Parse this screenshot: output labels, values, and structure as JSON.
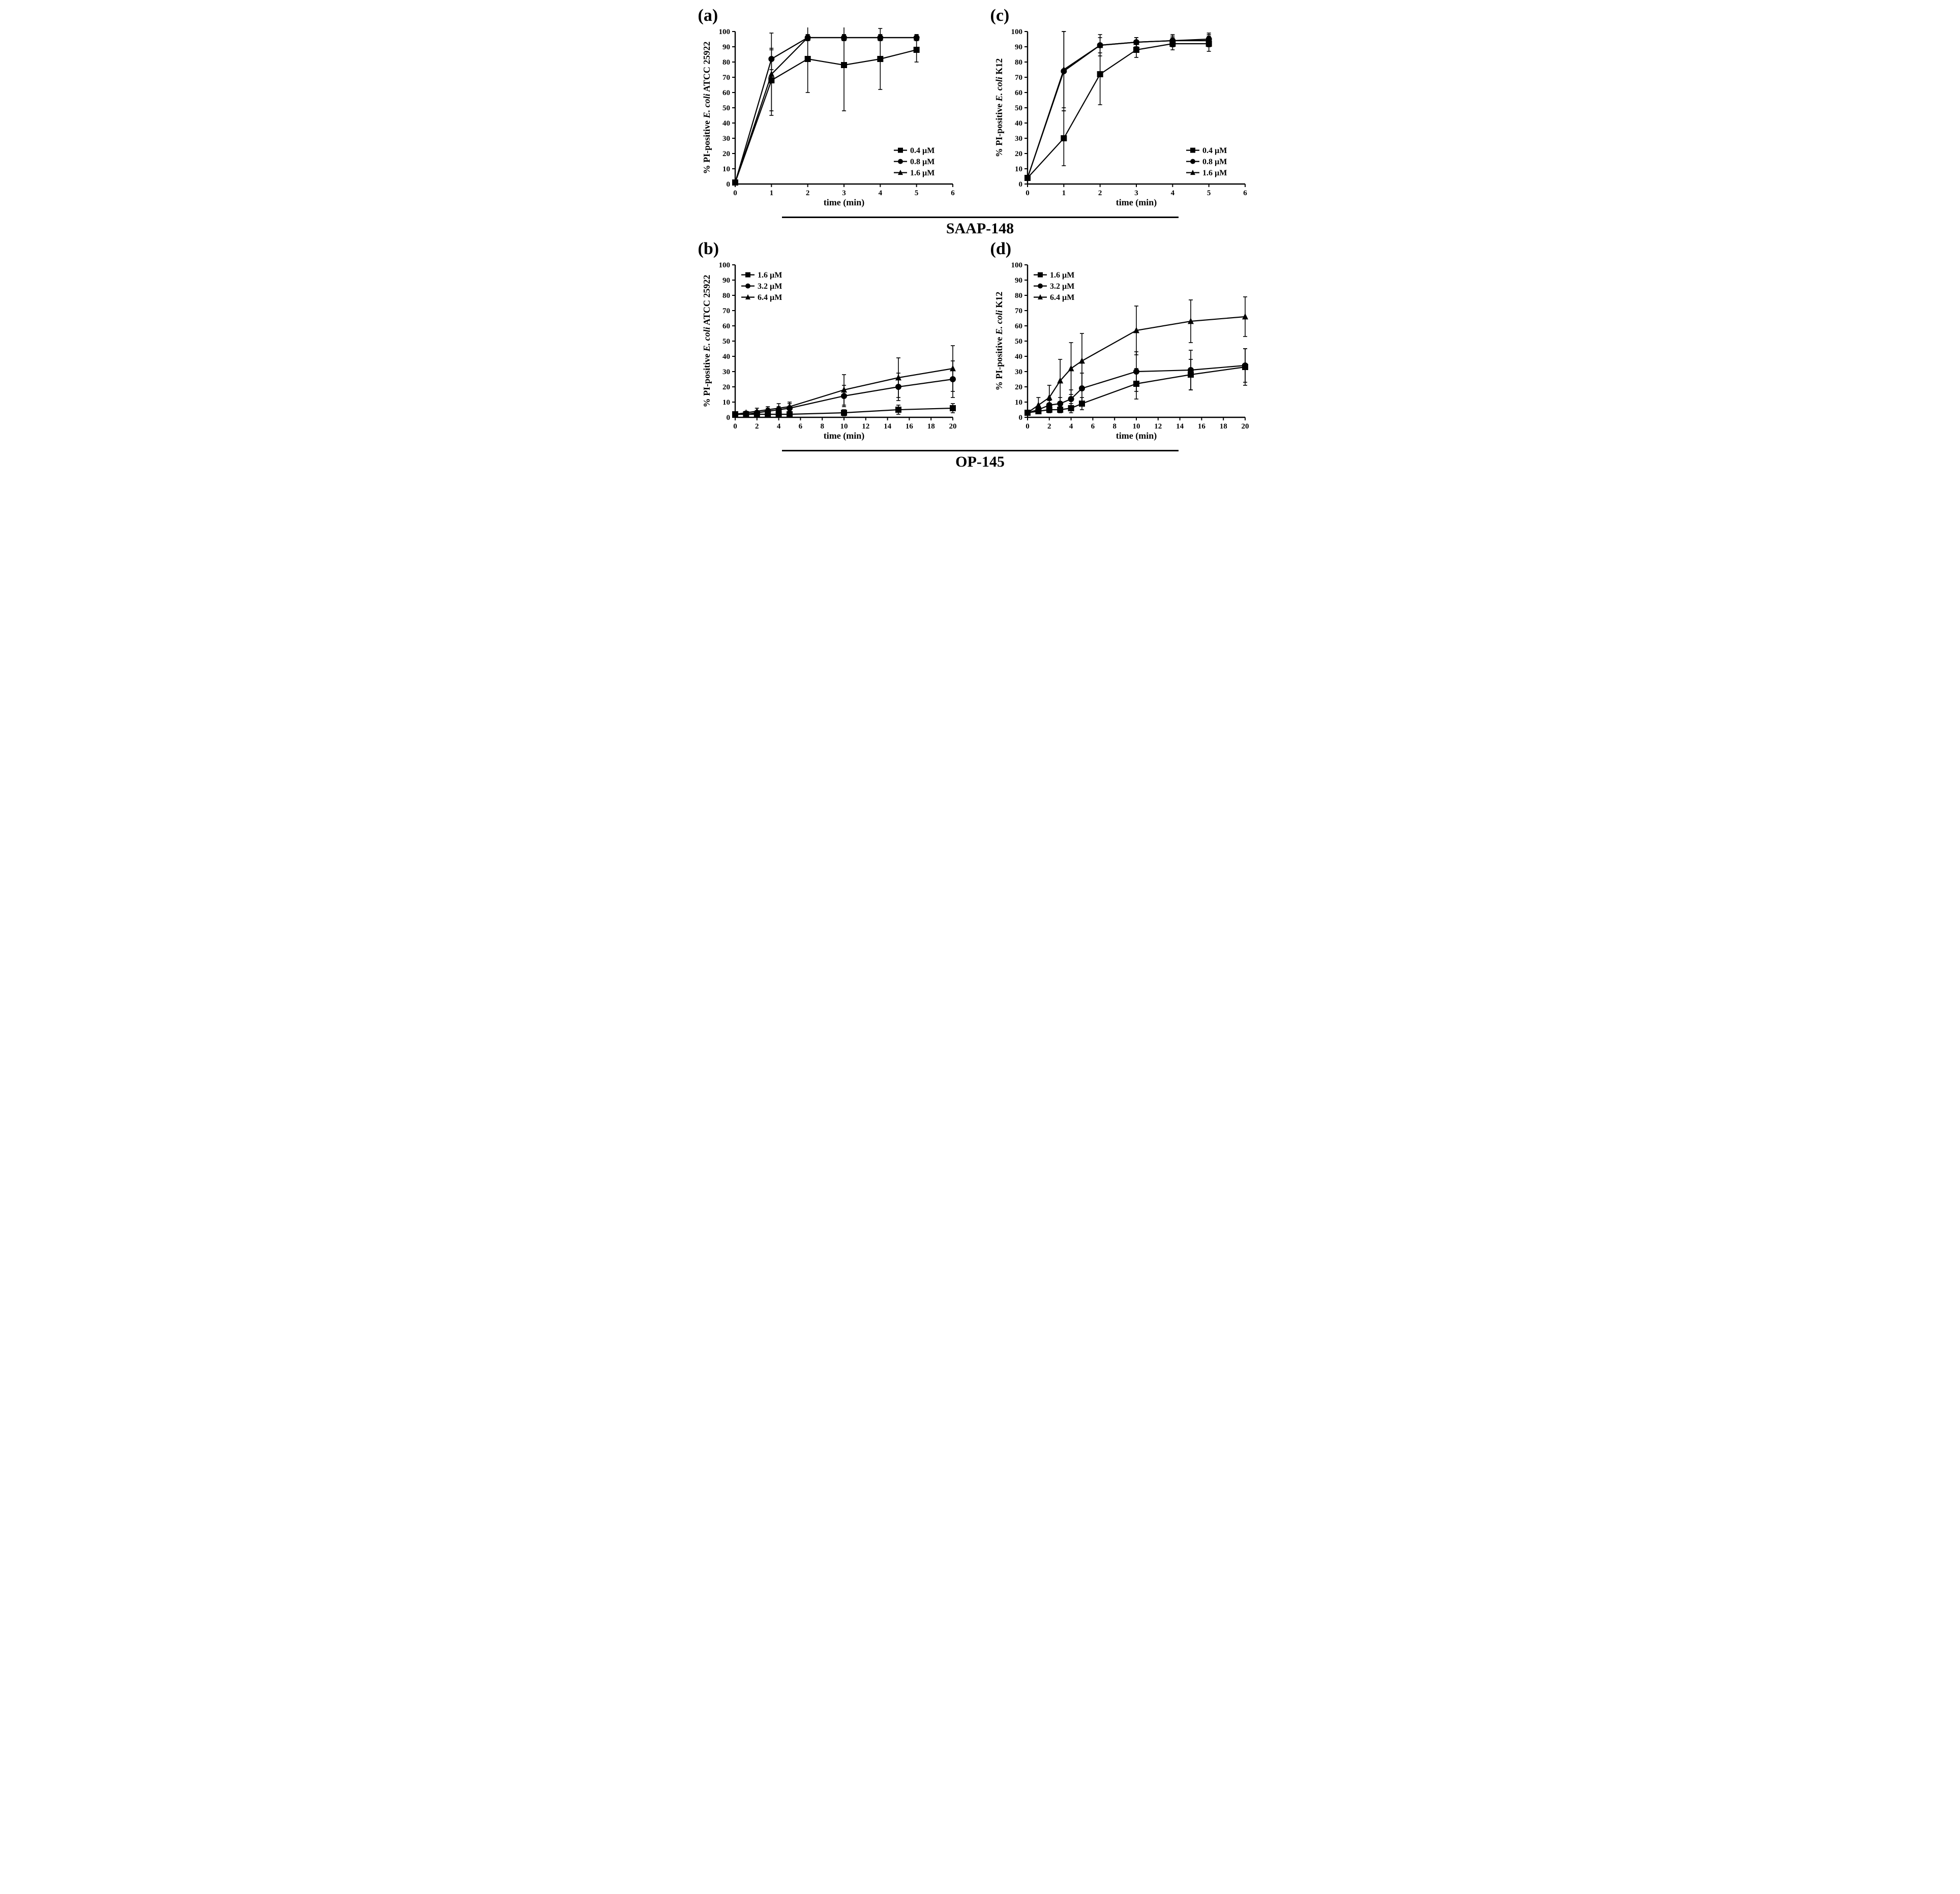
{
  "font_family": "Times New Roman, Times, serif",
  "colors": {
    "ink": "#000000",
    "bg": "#ffffff"
  },
  "sections": {
    "top": "SAAP-148",
    "bottom": "OP-145"
  },
  "panel_a": {
    "label": "(a)",
    "type": "line",
    "xlabel": "time (min)",
    "ylabel": "% PI-positive E. coli ATCC 25922",
    "ylabel_italic_ranges": [
      [
        14,
        21
      ]
    ],
    "xlim": [
      0,
      6
    ],
    "ylim": [
      0,
      100
    ],
    "xticks": [
      0,
      1,
      2,
      3,
      4,
      5,
      6
    ],
    "yticks": [
      0,
      10,
      20,
      30,
      40,
      50,
      60,
      70,
      80,
      90,
      100
    ],
    "axis_fontsize": 16,
    "tick_fontsize": 15,
    "label_fontsize": 18,
    "legend_fontsize": 16,
    "legend_pos": "br",
    "line_width": 2.2,
    "marker_size": 6,
    "series": [
      {
        "name": "0.4 µM",
        "marker": "square",
        "x": [
          0,
          1,
          2,
          3,
          4,
          5
        ],
        "y": [
          1,
          68,
          82,
          78,
          82,
          88
        ],
        "err": [
          0,
          20,
          22,
          30,
          20,
          8
        ]
      },
      {
        "name": "0.8 µM",
        "marker": "circle",
        "x": [
          0,
          1,
          2,
          3,
          4,
          5
        ],
        "y": [
          1,
          82,
          96,
          96,
          96,
          96
        ],
        "err": [
          0,
          7,
          2,
          2,
          2,
          2
        ]
      },
      {
        "name": "1.6 µM",
        "marker": "triangle",
        "x": [
          0,
          1,
          2,
          3,
          4,
          5
        ],
        "y": [
          1,
          72,
          96,
          96,
          96,
          96
        ],
        "err": [
          0,
          27,
          2,
          2,
          2,
          2
        ]
      }
    ]
  },
  "panel_c": {
    "label": "(c)",
    "type": "line",
    "xlabel": "time (min)",
    "ylabel": "% PI-positive E. coli K12",
    "ylabel_italic_ranges": [
      [
        14,
        21
      ]
    ],
    "xlim": [
      0,
      6
    ],
    "ylim": [
      0,
      100
    ],
    "xticks": [
      0,
      1,
      2,
      3,
      4,
      5,
      6
    ],
    "yticks": [
      0,
      10,
      20,
      30,
      40,
      50,
      60,
      70,
      80,
      90,
      100
    ],
    "axis_fontsize": 16,
    "tick_fontsize": 15,
    "label_fontsize": 18,
    "legend_fontsize": 16,
    "legend_pos": "br",
    "line_width": 2.2,
    "marker_size": 6,
    "series": [
      {
        "name": "0.4 µM",
        "marker": "square",
        "x": [
          0,
          1,
          2,
          3,
          4,
          5
        ],
        "y": [
          4,
          30,
          72,
          88,
          92,
          92
        ],
        "err": [
          0,
          18,
          20,
          5,
          4,
          5
        ]
      },
      {
        "name": "0.8 µM",
        "marker": "circle",
        "x": [
          0,
          1,
          2,
          3,
          4,
          5
        ],
        "y": [
          4,
          74,
          91,
          93,
          94,
          95
        ],
        "err": [
          0,
          26,
          7,
          3,
          4,
          4
        ]
      },
      {
        "name": "1.6 µM",
        "marker": "triangle",
        "x": [
          0,
          1,
          2,
          3,
          4,
          5
        ],
        "y": [
          4,
          75,
          91,
          93,
          94,
          94
        ],
        "err": [
          0,
          25,
          5,
          3,
          3,
          4
        ]
      }
    ]
  },
  "panel_b": {
    "label": "(b)",
    "type": "line",
    "xlabel": "time (min)",
    "ylabel": "% PI-positive E. coli ATCC 25922",
    "ylabel_italic_ranges": [
      [
        14,
        21
      ]
    ],
    "xlim": [
      0,
      20
    ],
    "ylim": [
      0,
      100
    ],
    "xticks": [
      0,
      2,
      4,
      6,
      8,
      10,
      12,
      14,
      16,
      18,
      20
    ],
    "yticks": [
      0,
      10,
      20,
      30,
      40,
      50,
      60,
      70,
      80,
      90,
      100
    ],
    "axis_fontsize": 16,
    "tick_fontsize": 15,
    "label_fontsize": 18,
    "legend_fontsize": 16,
    "legend_pos": "tl",
    "line_width": 2.2,
    "marker_size": 6,
    "series": [
      {
        "name": "1.6 µM",
        "marker": "square",
        "x": [
          0,
          1,
          2,
          3,
          4,
          5,
          10,
          15,
          20
        ],
        "y": [
          2,
          2,
          2,
          2,
          2,
          2,
          3,
          5,
          6
        ],
        "err": [
          0,
          1,
          1,
          1,
          1,
          1,
          2,
          3,
          3
        ]
      },
      {
        "name": "3.2 µM",
        "marker": "circle",
        "x": [
          0,
          1,
          2,
          3,
          4,
          5,
          10,
          15,
          20
        ],
        "y": [
          2,
          2,
          3,
          4,
          5,
          6,
          14,
          20,
          25
        ],
        "err": [
          0,
          1,
          1,
          2,
          2,
          3,
          7,
          9,
          12
        ]
      },
      {
        "name": "6.4 µM",
        "marker": "triangle",
        "x": [
          0,
          1,
          2,
          3,
          4,
          5,
          10,
          15,
          20
        ],
        "y": [
          2,
          3,
          4,
          5,
          6,
          7,
          18,
          26,
          32
        ],
        "err": [
          0,
          1,
          2,
          2,
          3,
          3,
          10,
          13,
          15
        ]
      }
    ]
  },
  "panel_d": {
    "label": "(d)",
    "type": "line",
    "xlabel": "time (min)",
    "ylabel": "% PI-positive  E. coli  K12",
    "ylabel_italic_ranges": [
      [
        15,
        22
      ]
    ],
    "xlim": [
      0,
      20
    ],
    "ylim": [
      0,
      100
    ],
    "xticks": [
      0,
      2,
      4,
      6,
      8,
      10,
      12,
      14,
      16,
      18,
      20
    ],
    "yticks": [
      0,
      10,
      20,
      30,
      40,
      50,
      60,
      70,
      80,
      90,
      100
    ],
    "axis_fontsize": 16,
    "tick_fontsize": 15,
    "label_fontsize": 18,
    "legend_fontsize": 16,
    "legend_pos": "tl",
    "line_width": 2.2,
    "marker_size": 6,
    "series": [
      {
        "name": "1.6 µM",
        "marker": "square",
        "x": [
          0,
          1,
          2,
          3,
          4,
          5,
          10,
          15,
          20
        ],
        "y": [
          3,
          4,
          5,
          5,
          6,
          9,
          22,
          28,
          33
        ],
        "err": [
          0,
          1,
          2,
          2,
          3,
          4,
          10,
          10,
          12
        ]
      },
      {
        "name": "3.2 µM",
        "marker": "circle",
        "x": [
          0,
          1,
          2,
          3,
          4,
          5,
          10,
          15,
          20
        ],
        "y": [
          3,
          5,
          8,
          9,
          12,
          19,
          30,
          31,
          34
        ],
        "err": [
          0,
          2,
          3,
          4,
          6,
          10,
          13,
          13,
          11
        ]
      },
      {
        "name": "6.4 µM",
        "marker": "triangle",
        "x": [
          0,
          1,
          2,
          3,
          4,
          5,
          10,
          15,
          20
        ],
        "y": [
          3,
          8,
          13,
          24,
          32,
          37,
          57,
          63,
          66
        ],
        "err": [
          0,
          5,
          8,
          14,
          17,
          18,
          16,
          14,
          13
        ]
      }
    ]
  }
}
